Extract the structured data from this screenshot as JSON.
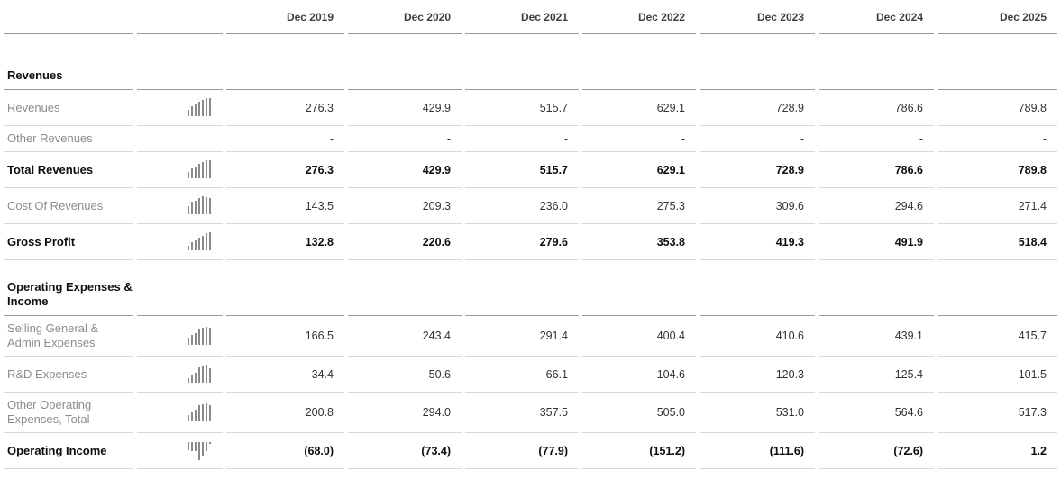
{
  "table": {
    "columns": [
      "Dec 2019",
      "Dec 2020",
      "Dec 2021",
      "Dec 2022",
      "Dec 2023",
      "Dec 2024",
      "Dec 2025"
    ],
    "sections": [
      {
        "title": "Revenues",
        "rows": [
          {
            "label": "Revenues",
            "bold": false,
            "spark": [
              276.3,
              429.9,
              515.7,
              629.1,
              728.9,
              786.6,
              789.8
            ],
            "values": [
              "276.3",
              "429.9",
              "515.7",
              "629.1",
              "728.9",
              "786.6",
              "789.8"
            ]
          },
          {
            "label": "Other Revenues",
            "bold": false,
            "spark": null,
            "values": [
              "-",
              "-",
              "-",
              "-",
              "-",
              "-",
              "-"
            ]
          },
          {
            "label": "Total Revenues",
            "bold": true,
            "spark": [
              276.3,
              429.9,
              515.7,
              629.1,
              728.9,
              786.6,
              789.8
            ],
            "values": [
              "276.3",
              "429.9",
              "515.7",
              "629.1",
              "728.9",
              "786.6",
              "789.8"
            ]
          },
          {
            "label": "Cost Of Revenues",
            "bold": false,
            "spark": [
              143.5,
              209.3,
              236.0,
              275.3,
              309.6,
              294.6,
              271.4
            ],
            "values": [
              "143.5",
              "209.3",
              "236.0",
              "275.3",
              "309.6",
              "294.6",
              "271.4"
            ]
          },
          {
            "label": "Gross Profit",
            "bold": true,
            "spark": [
              132.8,
              220.6,
              279.6,
              353.8,
              419.3,
              491.9,
              518.4
            ],
            "values": [
              "132.8",
              "220.6",
              "279.6",
              "353.8",
              "419.3",
              "491.9",
              "518.4"
            ]
          }
        ]
      },
      {
        "title": "Operating Expenses & Income",
        "rows": [
          {
            "label": "Selling General & Admin Expenses",
            "bold": false,
            "spark": [
              166.5,
              243.4,
              291.4,
              400.4,
              410.6,
              439.1,
              415.7
            ],
            "values": [
              "166.5",
              "243.4",
              "291.4",
              "400.4",
              "410.6",
              "439.1",
              "415.7"
            ]
          },
          {
            "label": "R&D Expenses",
            "bold": false,
            "spark": [
              34.4,
              50.6,
              66.1,
              104.6,
              120.3,
              125.4,
              101.5
            ],
            "values": [
              "34.4",
              "50.6",
              "66.1",
              "104.6",
              "120.3",
              "125.4",
              "101.5"
            ]
          },
          {
            "label": "Other Operating Expenses, Total",
            "bold": false,
            "spark": [
              200.8,
              294.0,
              357.5,
              505.0,
              531.0,
              564.6,
              517.3
            ],
            "values": [
              "200.8",
              "294.0",
              "357.5",
              "505.0",
              "531.0",
              "564.6",
              "517.3"
            ]
          },
          {
            "label": "Operating Income",
            "bold": true,
            "spark": [
              -68.0,
              -73.4,
              -77.9,
              -151.2,
              -111.6,
              -72.6,
              1.2
            ],
            "values": [
              "(68.0)",
              "(73.4)",
              "(77.9)",
              "(151.2)",
              "(111.6)",
              "(72.6)",
              "1.2"
            ]
          }
        ]
      }
    ]
  },
  "colors": {
    "header_border": "#949b9b",
    "row_border": "#d7d7d7",
    "label_text": "#8c8c8c",
    "value_text": "#333333",
    "bold_text": "#0d0d0d",
    "spark_bar": "#8a8a8a",
    "background": "#ffffff"
  }
}
